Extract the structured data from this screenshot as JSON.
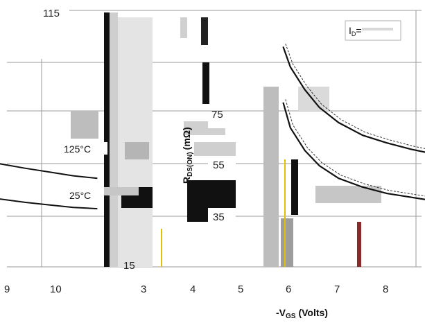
{
  "chart_data": {
    "type": "line",
    "title": "",
    "xlabel": "-V",
    "xlabel_sub": "GS",
    "xlabel_unit": "(Volts)",
    "ylabel": "R",
    "ylabel_sub": "DS(ON)",
    "ylabel_unit": "(mΩ)",
    "annotation": {
      "text": "I",
      "sub": "D",
      "value": "="
    },
    "x_ticks": [
      "9",
      "10",
      "3",
      "4",
      "5",
      "6",
      "7",
      "8"
    ],
    "y_ticks": [
      "115",
      "75",
      "55",
      "35",
      "15"
    ],
    "x_ticks_inner": [
      3,
      4,
      5,
      6,
      7,
      8
    ],
    "xlim": [
      2,
      9
    ],
    "ylim": [
      15,
      115
    ],
    "grid": true,
    "series": [
      {
        "name": "125°C",
        "x": [
          5.85,
          6.0,
          6.3,
          6.6,
          7.0,
          7.5,
          8.0,
          8.5,
          9.0
        ],
        "y": [
          102,
          94,
          85,
          78,
          72,
          67,
          64,
          61.5,
          59.5
        ]
      },
      {
        "name": "25°C",
        "x": [
          5.85,
          6.0,
          6.3,
          6.6,
          7.0,
          7.5,
          8.0,
          8.5,
          9.0
        ],
        "y": [
          80,
          70,
          61,
          55,
          50,
          46.5,
          44,
          42.5,
          41
        ]
      }
    ],
    "left_series_fragments": [
      {
        "x": [
          -0.1,
          0.5,
          1.0,
          1.5,
          2.0
        ],
        "y": [
          56,
          54,
          52.5,
          51,
          50
        ]
      },
      {
        "x": [
          -0.1,
          0.5,
          1.0,
          1.5,
          2.0
        ],
        "y": [
          42,
          40.5,
          39.5,
          38.5,
          38
        ]
      }
    ]
  }
}
